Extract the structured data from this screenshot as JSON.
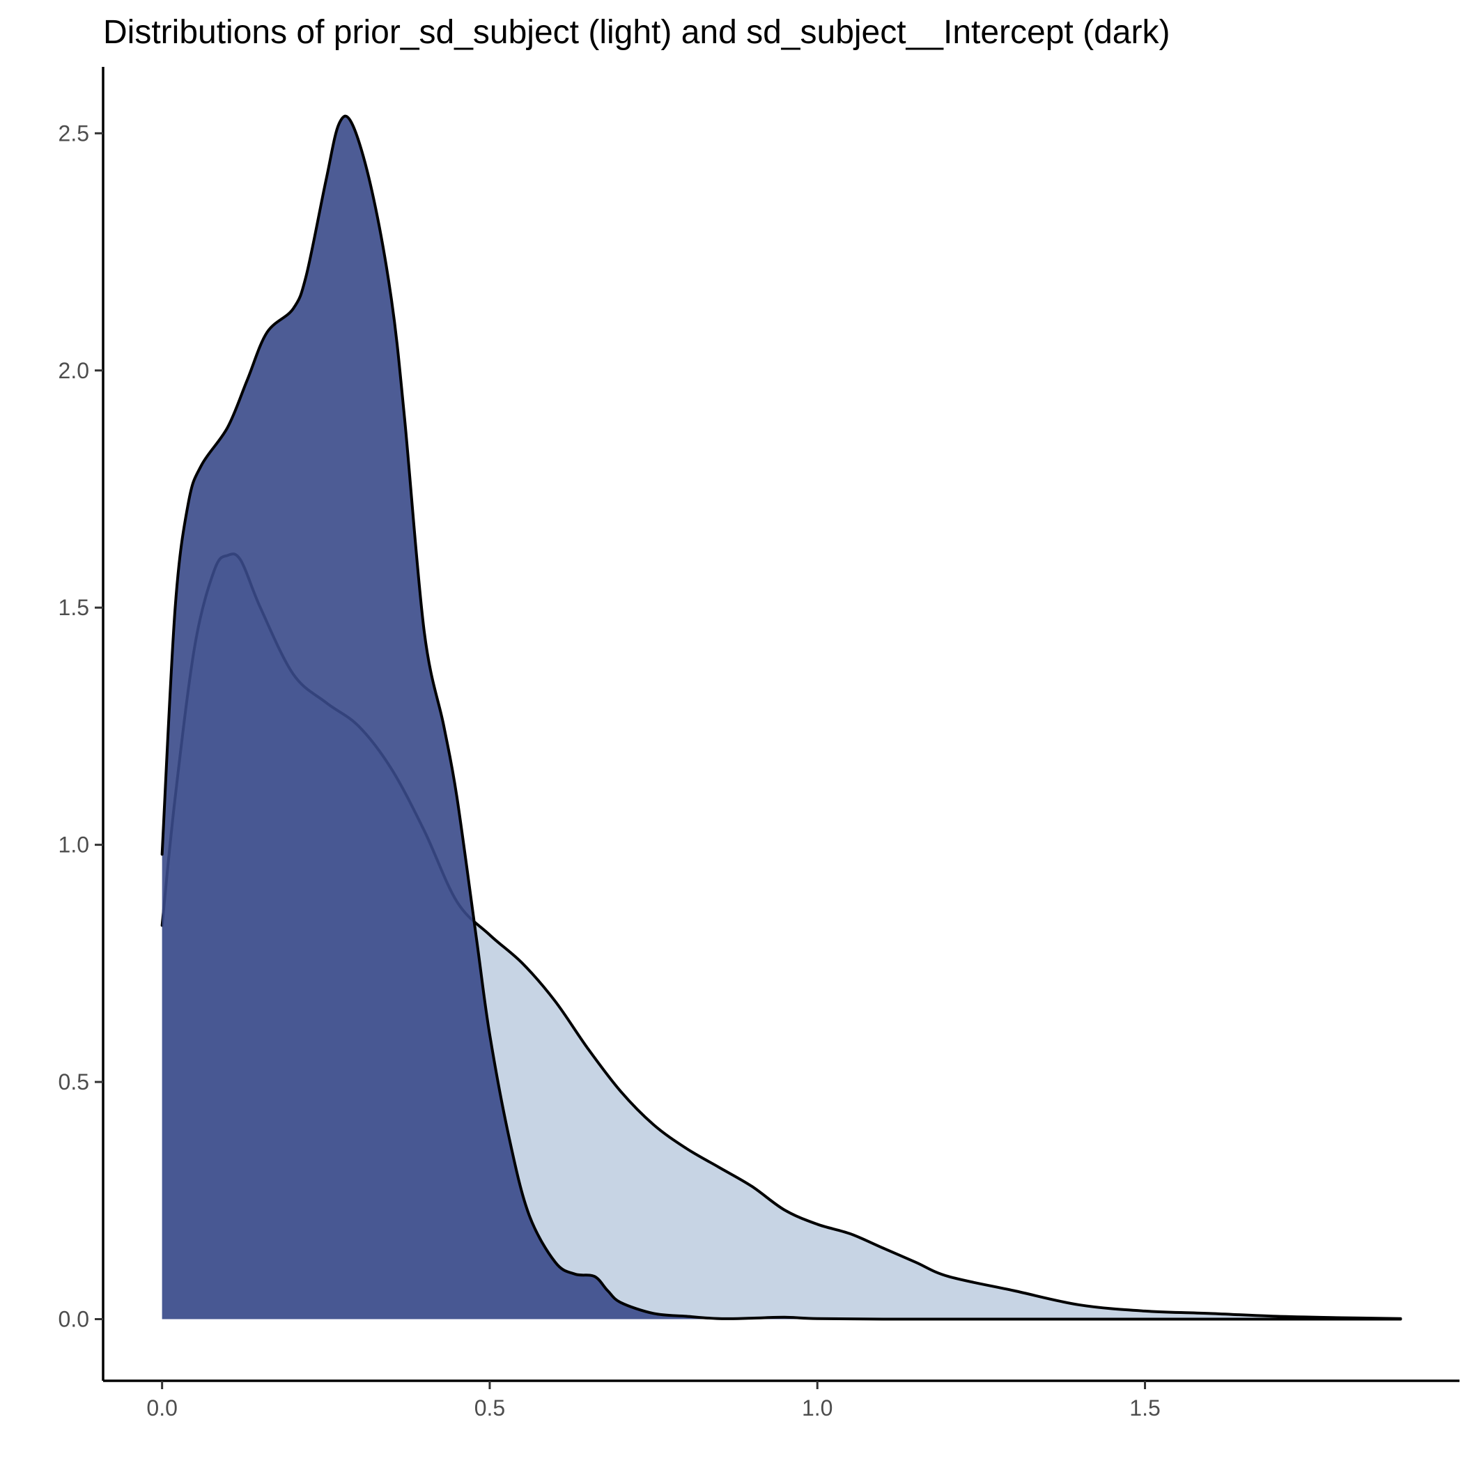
{
  "chart_data": {
    "type": "area",
    "title": "Distributions of prior_sd_subject (light) and sd_subject__Intercept (dark)",
    "xlabel": "",
    "ylabel": "",
    "xlim": [
      -0.09,
      1.98
    ],
    "ylim": [
      -0.13,
      2.64
    ],
    "x_ticks": [
      0.0,
      0.5,
      1.0,
      1.5
    ],
    "x_tick_labels": [
      "0.0",
      "0.5",
      "1.0",
      "1.5"
    ],
    "y_ticks": [
      0.0,
      0.5,
      1.0,
      1.5,
      2.0,
      2.5
    ],
    "y_tick_labels": [
      "0.0",
      "0.5",
      "1.0",
      "1.5",
      "2.0",
      "2.5"
    ],
    "grid": false,
    "legend": false,
    "series": [
      {
        "fill_color": "#c7d4e4",
        "fill_opacity": 1.0,
        "line_color": "#000000",
        "x": [
          0.0,
          0.02,
          0.05,
          0.08,
          0.1,
          0.12,
          0.15,
          0.2,
          0.25,
          0.3,
          0.35,
          0.4,
          0.45,
          0.5,
          0.55,
          0.6,
          0.65,
          0.7,
          0.75,
          0.8,
          0.85,
          0.9,
          0.95,
          1.0,
          1.05,
          1.1,
          1.15,
          1.2,
          1.3,
          1.4,
          1.5,
          1.6,
          1.7,
          1.8,
          1.89
        ],
        "y": [
          0.83,
          1.1,
          1.42,
          1.58,
          1.61,
          1.6,
          1.5,
          1.36,
          1.3,
          1.25,
          1.16,
          1.03,
          0.88,
          0.81,
          0.75,
          0.67,
          0.57,
          0.48,
          0.41,
          0.36,
          0.32,
          0.28,
          0.23,
          0.2,
          0.18,
          0.15,
          0.12,
          0.09,
          0.06,
          0.03,
          0.017,
          0.012,
          0.006,
          0.003,
          0.001
        ]
      },
      {
        "fill_color": "#3a4a8a",
        "fill_opacity": 0.9,
        "line_color": "#000000",
        "x": [
          0.0,
          0.02,
          0.04,
          0.06,
          0.1,
          0.13,
          0.16,
          0.2,
          0.22,
          0.25,
          0.27,
          0.29,
          0.32,
          0.35,
          0.37,
          0.4,
          0.43,
          0.45,
          0.48,
          0.5,
          0.53,
          0.56,
          0.6,
          0.63,
          0.66,
          0.68,
          0.7,
          0.75,
          0.8,
          0.85,
          0.9,
          0.95,
          1.0,
          1.1,
          1.3,
          1.5,
          1.7,
          1.89
        ],
        "y": [
          0.98,
          1.5,
          1.72,
          1.8,
          1.88,
          1.98,
          2.08,
          2.13,
          2.2,
          2.4,
          2.52,
          2.52,
          2.38,
          2.15,
          1.9,
          1.45,
          1.25,
          1.1,
          0.8,
          0.6,
          0.38,
          0.22,
          0.12,
          0.095,
          0.09,
          0.06,
          0.035,
          0.012,
          0.006,
          0.001,
          0.002,
          0.004,
          0.001,
          0.0,
          0.0,
          0.0,
          0.0,
          0.0
        ]
      }
    ]
  }
}
